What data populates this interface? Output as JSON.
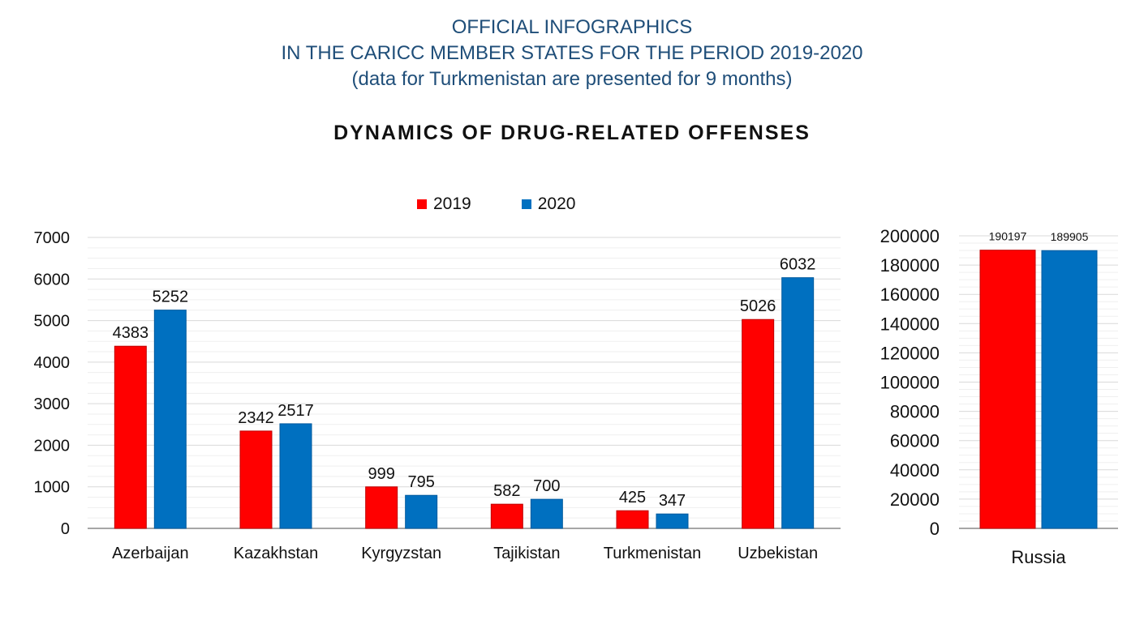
{
  "header": {
    "line1": "OFFICIAL INFOGRAPHICS",
    "line2": "IN THE CARICC MEMBER STATES FOR THE PERIOD 2019-2020",
    "line3": "(data for Turkmenistan are presented for 9 months)"
  },
  "colors": {
    "y2019": "#ff0000",
    "y2020": "#0070c0"
  },
  "chart_data": [
    {
      "type": "bar",
      "title": "DYNAMICS OF DRUG-RELATED OFFENSES",
      "categories": [
        "Azerbaijan",
        "Kazakhstan",
        "Kyrgyzstan",
        "Tajikistan",
        "Turkmenistan",
        "Uzbekistan"
      ],
      "series": [
        {
          "name": "2019",
          "values": [
            4383,
            2342,
            999,
            582,
            425,
            5026
          ]
        },
        {
          "name": "2020",
          "values": [
            5252,
            2517,
            795,
            700,
            347,
            6032
          ]
        }
      ],
      "ylim": [
        0,
        7000
      ],
      "yticks": [
        0,
        1000,
        2000,
        3000,
        4000,
        5000,
        6000,
        7000
      ],
      "legend": "top-center",
      "grid": true
    },
    {
      "type": "bar",
      "categories": [
        "Russia"
      ],
      "series": [
        {
          "name": "2019",
          "values": [
            190197
          ]
        },
        {
          "name": "2020",
          "values": [
            189905
          ]
        }
      ],
      "ylim": [
        0,
        200000
      ],
      "yticks": [
        0,
        20000,
        40000,
        60000,
        80000,
        100000,
        120000,
        140000,
        160000,
        180000,
        200000
      ],
      "grid": true
    }
  ]
}
